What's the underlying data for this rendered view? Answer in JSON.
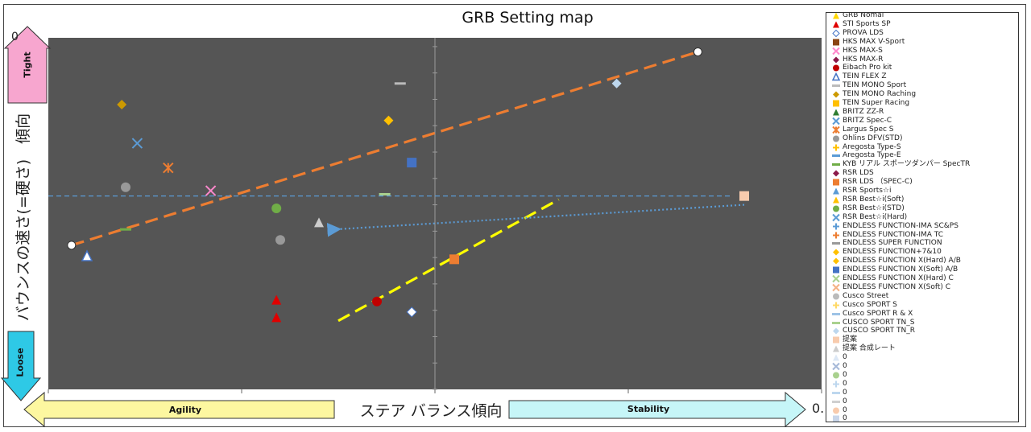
{
  "chart_data": {
    "type": "scatter",
    "title": "GRB Setting map",
    "xlabel": "ステア バランス傾向",
    "ylabel": "バウンスの速さ(=硬さ)　傾向",
    "xlim": [
      -10,
      10
    ],
    "ylim": [
      -10,
      10
    ],
    "grid": true,
    "legend_placement": "right",
    "x_right_label": "0.",
    "y_top_label": "0",
    "arrows": {
      "left": "Agility",
      "right": "Stability",
      "top": "Tight",
      "bottom": "Loose"
    },
    "colors": {
      "plot_bg": "#555555",
      "orange_line": "#ed7d31",
      "yellow_line": "#ffff00",
      "blue_line": "#5b9bd5",
      "arrow_pink": "#f7a6cf",
      "arrow_cyan": "#2ec9e6",
      "arrow_yellow": "#fdf7a0",
      "arrow_lightcyan": "#c6f6f8"
    },
    "trend_lines": [
      {
        "color": "#ed7d31",
        "from": [
          -9.4,
          -1.8
        ],
        "to": [
          6.8,
          9.2
        ],
        "style": "dash",
        "endpoint_markers": true
      },
      {
        "color": "#ffff00",
        "from": [
          -2.5,
          -6.1
        ],
        "to": [
          3.2,
          0.8
        ],
        "style": "dash"
      },
      {
        "color": "#5b9bd5",
        "from": [
          -10,
          1.0
        ],
        "to": [
          7.7,
          1.0
        ],
        "style": "dash"
      },
      {
        "color": "#5b9bd5",
        "from": [
          8.0,
          0.5
        ],
        "to": [
          -2.6,
          -0.9
        ],
        "style": "dot-arrow"
      }
    ],
    "series": [
      {
        "name": "GRB Nomal",
        "marker": "triangle",
        "color": "#ffd700",
        "points": []
      },
      {
        "name": "STI  Sports SP",
        "marker": "triangle",
        "color": "#e00000",
        "points": [
          [
            -4.1,
            -4.9
          ],
          [
            -4.1,
            -5.9
          ]
        ]
      },
      {
        "name": "PROVA LDS",
        "marker": "diamond-open",
        "color": "#ffffff",
        "points": [
          [
            -0.6,
            -5.6
          ]
        ]
      },
      {
        "name": "HKS   MAX V-Sport",
        "marker": "square",
        "color": "#8b4513",
        "points": []
      },
      {
        "name": "HKS   MAX-S",
        "marker": "x",
        "color": "#ff88cc",
        "points": [
          [
            -5.8,
            1.3
          ]
        ]
      },
      {
        "name": "HKS   MAX-R",
        "marker": "diamond",
        "color": "#8b1a4a",
        "points": []
      },
      {
        "name": "Eibach Pro kit",
        "marker": "circle",
        "color": "#c00000",
        "points": [
          [
            -1.5,
            -5.0
          ]
        ]
      },
      {
        "name": "TEIN   FLEX Z",
        "marker": "triangle-open",
        "color": "#ffffff",
        "points": [
          [
            -9.0,
            -2.4
          ]
        ]
      },
      {
        "name": "TEIN MONO Sport",
        "marker": "dash",
        "color": "#bbbbbb",
        "points": [
          [
            -0.9,
            7.4
          ]
        ]
      },
      {
        "name": "TEIN MONO Raching",
        "marker": "diamond",
        "color": "#cc9900",
        "points": [
          [
            -8.1,
            6.2
          ]
        ]
      },
      {
        "name": "TEIN Super Racing",
        "marker": "square",
        "color": "#ffc000",
        "points": []
      },
      {
        "name": "BRITZ  ZZ-R",
        "marker": "triangle",
        "color": "#2e7d32",
        "points": []
      },
      {
        "name": "BRITZ  Spec-C",
        "marker": "x",
        "color": "#5b9bd5",
        "points": [
          [
            -7.7,
            4.0
          ]
        ]
      },
      {
        "name": "Largus Spec S",
        "marker": "asterisk",
        "color": "#ed7d31",
        "points": [
          [
            -6.9,
            2.6
          ]
        ]
      },
      {
        "name": "Ohlins DFV(STD)",
        "marker": "circle",
        "color": "#999999",
        "points": [
          [
            -8.0,
            1.5
          ],
          [
            -4.0,
            -1.5
          ]
        ]
      },
      {
        "name": "Aregosta  Type-S",
        "marker": "plus",
        "color": "#ffc000",
        "points": []
      },
      {
        "name": "Aregosta  Type-E",
        "marker": "dash",
        "color": "#5b9bd5",
        "points": []
      },
      {
        "name": "KYB リアル スポーツダンパー SpecTR",
        "marker": "dash",
        "color": "#70ad47",
        "points": [
          [
            -8.0,
            -0.9
          ]
        ]
      },
      {
        "name": "RSR LDS",
        "marker": "diamond",
        "color": "#8b1a4a",
        "points": []
      },
      {
        "name": "RSR LDS  （SPEC-C)",
        "marker": "square",
        "color": "#ed7d31",
        "points": [
          [
            0.5,
            -2.6
          ]
        ]
      },
      {
        "name": "RSR Sports☆i",
        "marker": "triangle",
        "color": "#5b9bd5",
        "points": []
      },
      {
        "name": "RSR Best☆i(Soft)",
        "marker": "triangle",
        "color": "#ffc000",
        "points": []
      },
      {
        "name": "RSR Best☆i(STD)",
        "marker": "circle",
        "color": "#70ad47",
        "points": [
          [
            -4.1,
            0.3
          ]
        ]
      },
      {
        "name": "RSR Best☆i(Hard)",
        "marker": "x",
        "color": "#5b9bd5",
        "points": []
      },
      {
        "name": "ENDLESS FUNCTION-IMA SC&PS",
        "marker": "plus",
        "color": "#5b9bd5",
        "points": []
      },
      {
        "name": "ENDLESS FUNCTION-IMA TC",
        "marker": "plus",
        "color": "#ed7d31",
        "points": []
      },
      {
        "name": "ENDLESS SUPER FUNCTION",
        "marker": "dash",
        "color": "#999999",
        "points": []
      },
      {
        "name": "ENDLESS FUNCTION+7&10",
        "marker": "diamond",
        "color": "#ffc000",
        "points": []
      },
      {
        "name": "ENDLESS FUNCTION X(Hard)  A/B",
        "marker": "diamond",
        "color": "#ffc000",
        "points": [
          [
            -1.2,
            5.3
          ]
        ]
      },
      {
        "name": "ENDLESS FUNCTION X(Soft)  A/B",
        "marker": "square",
        "color": "#4472c4",
        "points": [
          [
            -0.6,
            2.9
          ]
        ]
      },
      {
        "name": "ENDLESS FUNCTION X(Hard)  C",
        "marker": "x",
        "color": "#a9d18e",
        "points": []
      },
      {
        "name": "ENDLESS FUNCTION X(Soft)  C",
        "marker": "x",
        "color": "#f4b183",
        "points": []
      },
      {
        "name": "Cusco Street",
        "marker": "circle",
        "color": "#bbbbbb",
        "points": []
      },
      {
        "name": "Cusco SPORT S",
        "marker": "plus",
        "color": "#ffd966",
        "points": []
      },
      {
        "name": "Cusco SPORT R & X",
        "marker": "dash",
        "color": "#9dc3e6",
        "points": []
      },
      {
        "name": "CUSCO SPORT TN_S",
        "marker": "dash",
        "color": "#a9d18e",
        "points": [
          [
            -1.3,
            1.1
          ]
        ]
      },
      {
        "name": "CUSCO SPORT TN_R",
        "marker": "diamond",
        "color": "#bdd7ee",
        "points": [
          [
            4.7,
            7.4
          ]
        ]
      },
      {
        "name": "提案",
        "marker": "square",
        "color": "#f8cbad",
        "points": [
          [
            8.0,
            1.0
          ]
        ]
      },
      {
        "name": "提案  合成レート",
        "marker": "triangle",
        "color": "#cccccc",
        "points": [
          [
            -3.0,
            -0.5
          ]
        ]
      },
      {
        "name": "0",
        "marker": "triangle",
        "color": "#dde8f5",
        "points": []
      },
      {
        "name": "0",
        "marker": "x",
        "color": "#a5b8d8",
        "points": []
      },
      {
        "name": "0",
        "marker": "circle",
        "color": "#a9d18e",
        "points": []
      },
      {
        "name": "0",
        "marker": "plus",
        "color": "#bdd7ee",
        "points": []
      },
      {
        "name": "0",
        "marker": "dash",
        "color": "#bdd7ee",
        "points": []
      },
      {
        "name": "0",
        "marker": "dash",
        "color": "#cfcfcf",
        "points": []
      },
      {
        "name": "0",
        "marker": "circle",
        "color": "#f8cbad",
        "points": []
      },
      {
        "name": "0",
        "marker": "square",
        "color": "#c9d6ea",
        "points": []
      }
    ]
  }
}
